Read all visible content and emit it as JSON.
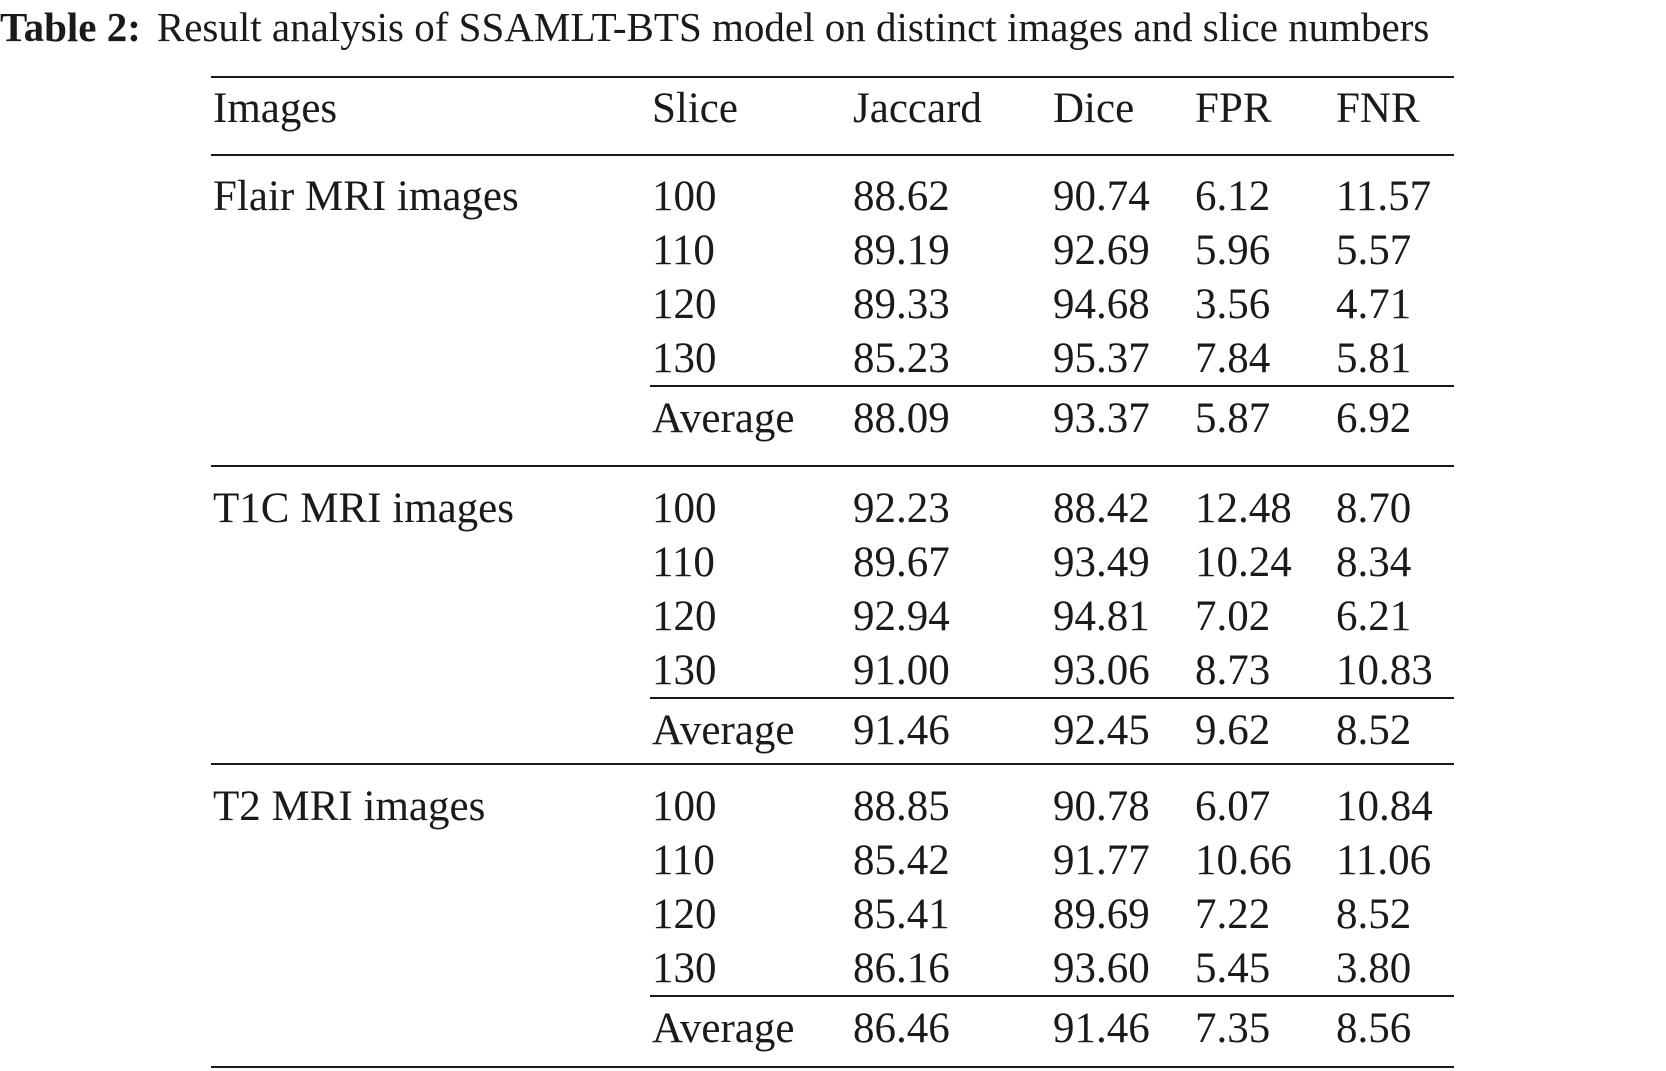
{
  "caption": {
    "label": "Table 2:",
    "text": "Result analysis of SSAMLT-BTS model on distinct images and slice numbers"
  },
  "table": {
    "headers": [
      "Images",
      "Slice",
      "Jaccard",
      "Dice",
      "FPR",
      "FNR"
    ],
    "groups": [
      {
        "name": "Flair MRI images",
        "rows": [
          [
            "100",
            "88.62",
            "90.74",
            "6.12",
            "11.57"
          ],
          [
            "110",
            "89.19",
            "92.69",
            "5.96",
            "5.57"
          ],
          [
            "120",
            "89.33",
            "94.68",
            "3.56",
            "4.71"
          ],
          [
            "130",
            "85.23",
            "95.37",
            "7.84",
            "5.81"
          ]
        ],
        "average": [
          "Average",
          "88.09",
          "93.37",
          "5.87",
          "6.92"
        ]
      },
      {
        "name": "T1C MRI images",
        "rows": [
          [
            "100",
            "92.23",
            "88.42",
            "12.48",
            "8.70"
          ],
          [
            "110",
            "89.67",
            "93.49",
            "10.24",
            "8.34"
          ],
          [
            "120",
            "92.94",
            "94.81",
            "7.02",
            "6.21"
          ],
          [
            "130",
            "91.00",
            "93.06",
            "8.73",
            "10.83"
          ]
        ],
        "average": [
          "Average",
          "91.46",
          "92.45",
          "9.62",
          "8.52"
        ]
      },
      {
        "name": "T2 MRI images",
        "rows": [
          [
            "100",
            "88.85",
            "90.78",
            "6.07",
            "10.84"
          ],
          [
            "110",
            "85.42",
            "91.77",
            "10.66",
            "11.06"
          ],
          [
            "120",
            "85.41",
            "89.69",
            "7.22",
            "8.52"
          ],
          [
            "130",
            "86.16",
            "93.60",
            "5.45",
            "3.80"
          ]
        ],
        "average": [
          "Average",
          "86.46",
          "91.46",
          "7.35",
          "8.56"
        ]
      }
    ]
  }
}
